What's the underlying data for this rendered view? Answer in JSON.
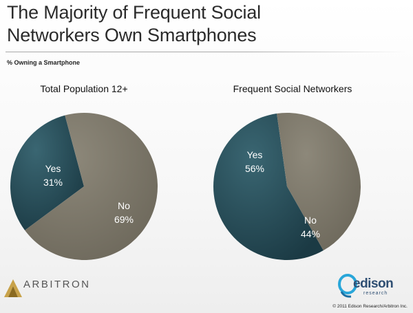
{
  "header": {
    "title_line1": "The Majority of Frequent Social",
    "title_line2": "Networkers Own Smartphones",
    "subtitle": "% Owning a Smartphone"
  },
  "chart_data": [
    {
      "type": "pie",
      "title": "Total Population 12+",
      "slices": [
        {
          "label": "Yes",
          "value": 31,
          "display": "31%"
        },
        {
          "label": "No",
          "value": 69,
          "display": "69%"
        }
      ]
    },
    {
      "type": "pie",
      "title": "Frequent Social Networkers",
      "slices": [
        {
          "label": "Yes",
          "value": 56,
          "display": "56%"
        },
        {
          "label": "No",
          "value": 44,
          "display": "44%"
        }
      ]
    }
  ],
  "colors": {
    "yes": "#28505c",
    "no": "#7f7a6c"
  },
  "footer": {
    "logo_left_text": "ARBITRON",
    "logo_right_name": "edison",
    "logo_right_sub": "research",
    "copyright": "© 2011 Edison Research/Arbitron Inc."
  }
}
